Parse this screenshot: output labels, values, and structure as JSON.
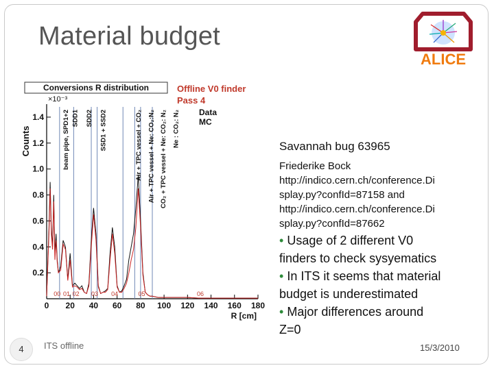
{
  "slide": {
    "title": "Material budget",
    "page_number": "4",
    "footer_left": "ITS offline",
    "footer_right": "15/3/2010"
  },
  "logo": {
    "text": "ALICE"
  },
  "chart_data": {
    "type": "line",
    "title": "Conversions R distribution",
    "annotation_title": "Offline V0 finder",
    "annotation_pass": "Pass 4",
    "xlabel": "R [cm]",
    "ylabel": "Counts",
    "y_exponent": "×10⁻³",
    "xlim": [
      0,
      180
    ],
    "ylim": [
      0,
      1.5
    ],
    "x_ticks": [
      "0",
      "20",
      "40",
      "60",
      "80",
      "100",
      "120",
      "140",
      "160",
      "180"
    ],
    "y_ticks": [
      "0.2",
      "0.4",
      "0.6",
      "0.8",
      "1.0",
      "1.2",
      "1.4"
    ],
    "legend": [
      "Data",
      "MC"
    ],
    "region_labels": [
      "beam pipe, SPD1+2",
      "SDD1",
      "SDD2",
      "SSD1 + SSD2",
      "Air + TPC vessel + CO₂",
      "Air + TPC vessel + Ne: CO₂:N₂",
      "CO₂ + TPC vessel + Ne: CO₂: N₂",
      "Ne : CO₂: N₂"
    ],
    "bottom_labels": [
      "00",
      "01",
      "02",
      "03",
      "04",
      "05",
      "06"
    ],
    "region_lines_x": [
      11,
      23,
      38,
      43,
      65,
      75,
      80,
      90
    ],
    "series": [
      {
        "name": "Data",
        "color": "#111111",
        "x": [
          0,
          2,
          3,
          4,
          5,
          6,
          7,
          8,
          9,
          10,
          12,
          14,
          16,
          18,
          20,
          22,
          24,
          26,
          28,
          30,
          32,
          34,
          36,
          38,
          40,
          42,
          44,
          46,
          48,
          50,
          52,
          54,
          56,
          58,
          60,
          62,
          64,
          66,
          68,
          70,
          72,
          74,
          76,
          78,
          80,
          82,
          84,
          86,
          88,
          90,
          95,
          100,
          110,
          120,
          130,
          140,
          150,
          160,
          170,
          180
        ],
        "y": [
          0.02,
          0.55,
          0.9,
          0.55,
          0.4,
          0.8,
          0.35,
          0.5,
          0.3,
          0.2,
          0.25,
          0.45,
          0.4,
          0.15,
          0.35,
          0.1,
          0.12,
          0.1,
          0.08,
          0.1,
          0.05,
          0.04,
          0.12,
          0.45,
          0.7,
          0.5,
          0.1,
          0.04,
          0.05,
          0.06,
          0.08,
          0.35,
          0.55,
          0.4,
          0.1,
          0.05,
          0.06,
          0.1,
          0.15,
          0.3,
          0.4,
          0.5,
          0.7,
          0.95,
          0.6,
          0.2,
          0.05,
          0.03,
          0.02,
          0.02,
          0.01,
          0.01,
          0.01,
          0.01,
          0.005,
          0.005,
          0.005,
          0.005,
          0.005,
          0.005
        ]
      },
      {
        "name": "MC",
        "color": "#cc2222",
        "x": [
          0,
          2,
          3,
          4,
          5,
          6,
          7,
          8,
          9,
          10,
          12,
          14,
          16,
          18,
          20,
          22,
          24,
          26,
          28,
          30,
          32,
          34,
          36,
          38,
          40,
          42,
          44,
          46,
          48,
          50,
          52,
          54,
          56,
          58,
          60,
          62,
          64,
          66,
          68,
          70,
          72,
          74,
          76,
          78,
          80,
          82,
          84,
          86,
          88,
          90,
          95,
          100,
          110,
          120,
          130,
          140,
          150,
          160,
          170,
          180
        ],
        "y": [
          0.02,
          0.5,
          0.85,
          0.5,
          0.38,
          0.75,
          0.3,
          0.45,
          0.28,
          0.2,
          0.22,
          0.42,
          0.38,
          0.14,
          0.3,
          0.09,
          0.1,
          0.09,
          0.07,
          0.08,
          0.05,
          0.04,
          0.1,
          0.4,
          0.65,
          0.45,
          0.09,
          0.04,
          0.05,
          0.05,
          0.07,
          0.3,
          0.5,
          0.35,
          0.09,
          0.05,
          0.05,
          0.08,
          0.12,
          0.2,
          0.3,
          0.38,
          0.55,
          0.85,
          0.55,
          0.18,
          0.05,
          0.03,
          0.02,
          0.02,
          0.01,
          0.01,
          0.01,
          0.01,
          0.005,
          0.005,
          0.005,
          0.005,
          0.005,
          0.005
        ]
      }
    ]
  },
  "notes": {
    "heading": "Savannah bug 63965",
    "author": "Friederike Bock",
    "link1_a": "http://indico.cern.ch/conference.Di",
    "link1_b": "splay.py?confId=87158 and",
    "link2_a": "http://indico.cern.ch/conference.Di",
    "link2_b": "splay.py?confId=87662",
    "bullet1_a": "Usage of 2 different V0",
    "bullet1_b": "finders to check sysyematics",
    "bullet2_a": "In ITS it seems that material",
    "bullet2_b": "budget is underestimated",
    "bullet3_a": "Major differences around",
    "bullet3_b": "Z=0"
  }
}
